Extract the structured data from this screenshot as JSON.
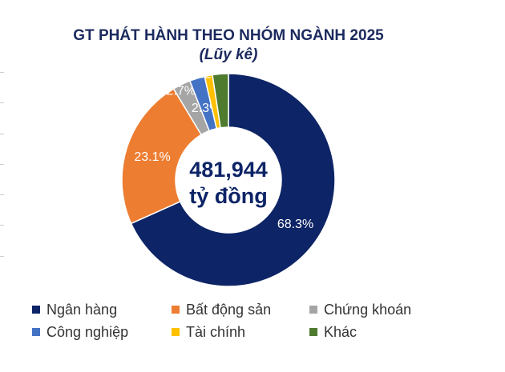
{
  "chart_data": {
    "type": "pie",
    "donut": true,
    "title": "GT PHÁT HÀNH THEO NHÓM NGÀNH 2025",
    "subtitle": "(Lũy kê)",
    "center_label": {
      "value": "481,944",
      "unit": "tỷ đồng"
    },
    "categories": [
      "Ngân hàng",
      "Bất động sản",
      "Chứng khoán",
      "Công nghiệp",
      "Tài chính",
      "Khác"
    ],
    "values": [
      68.3,
      23.1,
      2.7,
      2.3,
      1.2,
      2.4
    ],
    "data_labels": [
      "68.3%",
      "23.1%",
      "2.7%",
      "2.3%",
      "1.2%",
      ""
    ],
    "colors": [
      "#0d2466",
      "#ed7d31",
      "#a5a5a5",
      "#4472c4",
      "#ffc000",
      "#4e7b2e"
    ],
    "legend_position": "bottom"
  }
}
